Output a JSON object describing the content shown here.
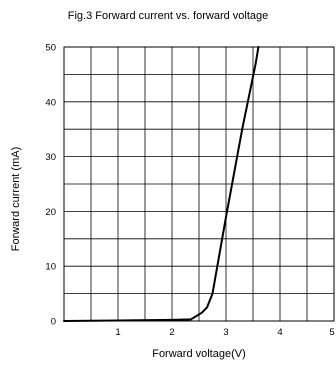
{
  "chart_data": {
    "type": "line",
    "title": "Fig.3 Forward current vs. forward voltage",
    "xlabel": "Forward voltage(V)",
    "ylabel": "Forward current (mA)",
    "xlim": [
      0,
      5
    ],
    "ylim": [
      0,
      50
    ],
    "grid": true,
    "x_ticks": [
      1,
      2,
      3,
      4,
      5
    ],
    "x_tick_labels": [
      "1",
      "2",
      "3",
      "4",
      "5"
    ],
    "y_ticks": [
      0,
      10,
      20,
      30,
      40,
      50
    ],
    "y_tick_labels": [
      "0",
      "10",
      "20",
      "30",
      "40",
      "50"
    ],
    "x_grid_step": 0.5,
    "y_grid_step": 5,
    "series": [
      {
        "x": [
          0,
          1.0,
          2.0,
          2.35,
          2.55,
          2.65,
          2.75,
          3.0,
          3.3,
          3.55,
          3.6
        ],
        "y": [
          0,
          0.1,
          0.2,
          0.3,
          1.5,
          2.5,
          5,
          19,
          35,
          47,
          50
        ]
      }
    ]
  }
}
